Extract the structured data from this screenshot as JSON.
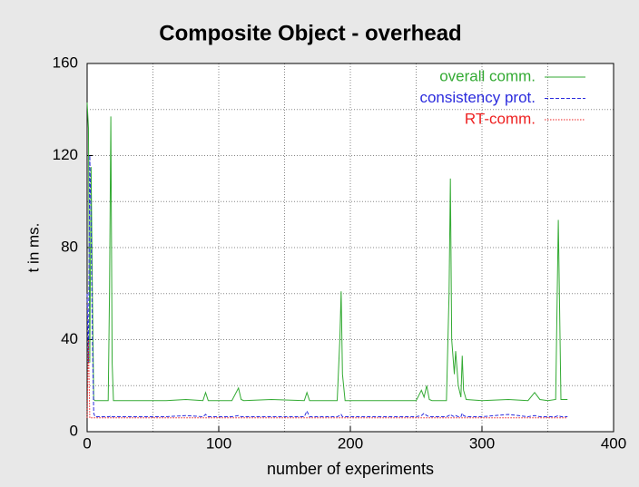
{
  "chart_data": {
    "type": "line",
    "title": "Composite Object - overhead",
    "xlabel": "number of experiments",
    "ylabel": "t in ms.",
    "xlim": [
      0,
      400
    ],
    "ylim": [
      0,
      160
    ],
    "xticks": [
      0,
      100,
      200,
      300,
      400
    ],
    "yticks": [
      0,
      40,
      80,
      120,
      160
    ],
    "xgrid": [
      50,
      150,
      250,
      350
    ],
    "ygrid": [
      20,
      60,
      100,
      140
    ],
    "grid": true,
    "legend": "upper right",
    "x": [
      0,
      1,
      2,
      3,
      4,
      5,
      6,
      10,
      16,
      17,
      18,
      19,
      20,
      40,
      60,
      75,
      88,
      90,
      92,
      110,
      115,
      117,
      119,
      140,
      165,
      167,
      169,
      190,
      192,
      193,
      194,
      196,
      220,
      250,
      254,
      256,
      258,
      260,
      262,
      273,
      275,
      276,
      277,
      279,
      280,
      282,
      284,
      285,
      286,
      288,
      300,
      320,
      335,
      340,
      344,
      350,
      356,
      358,
      360,
      365
    ],
    "series": [
      {
        "name": "overall comm.",
        "color": "#33aa33",
        "dash": "none",
        "values": [
          143,
          132,
          30,
          115,
          60,
          14,
          13.5,
          13.5,
          13.5,
          60,
          137,
          30,
          13.5,
          13.5,
          13.5,
          14,
          13.5,
          17,
          13.5,
          13.5,
          19,
          14,
          13.5,
          14,
          13.5,
          17,
          13.5,
          13.5,
          40,
          61,
          25,
          13.5,
          13.5,
          13.5,
          18,
          15,
          20,
          14,
          13.5,
          13.5,
          60,
          110,
          40,
          25,
          35,
          20,
          15,
          33,
          18,
          14,
          13.5,
          14,
          13.5,
          17,
          14,
          13.5,
          14,
          92,
          14,
          14
        ]
      },
      {
        "name": "consistency prot.",
        "color": "#2b2bdd",
        "dash": "4 2",
        "values": [
          60,
          30,
          120,
          90,
          40,
          8,
          6.5,
          6.5,
          6.5,
          6.5,
          7,
          6.5,
          6.5,
          6.5,
          6.5,
          7,
          6.5,
          7.5,
          6.5,
          6.5,
          7,
          6.5,
          6.5,
          6.5,
          6.5,
          9,
          6.5,
          6.5,
          7,
          7.5,
          6.5,
          6.5,
          6.5,
          6.5,
          7,
          8,
          7,
          6.5,
          6.5,
          6.5,
          7,
          7.5,
          7,
          6.5,
          7,
          6.5,
          6.5,
          8,
          7,
          6.5,
          6.5,
          7.5,
          6.5,
          7,
          6.5,
          6.5,
          6.5,
          7,
          6.5,
          6.5
        ]
      },
      {
        "name": "RT-comm.",
        "color": "#ee2222",
        "dash": "1.5 1.5",
        "values": [
          6,
          40,
          6,
          6,
          6,
          6,
          6,
          6,
          6,
          6,
          6,
          6,
          6,
          6,
          6,
          6,
          6,
          6,
          6,
          6,
          6,
          6,
          6,
          6,
          6,
          6,
          6,
          6,
          6,
          6,
          6,
          6,
          6,
          6,
          6,
          6,
          6,
          6,
          6,
          6,
          6,
          6,
          6,
          6,
          6,
          6,
          6,
          6,
          6,
          6,
          6,
          6,
          6,
          6,
          6,
          6,
          6,
          6,
          6,
          6
        ]
      }
    ]
  }
}
